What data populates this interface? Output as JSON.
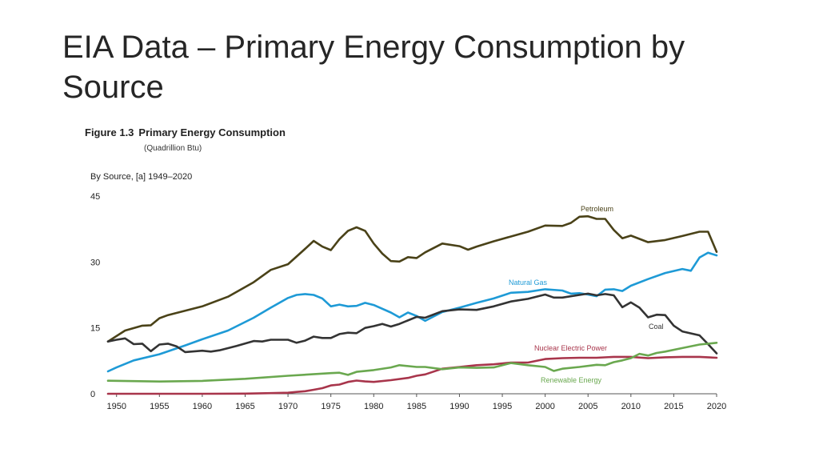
{
  "slide": {
    "title": "EIA Data – Primary Energy Consumption by Source"
  },
  "figure": {
    "label": "Figure 1.3",
    "title": "Primary Energy Consumption",
    "units": "(Quadrillion Btu)",
    "subtitle": "By Source, [a] 1949–2020"
  },
  "chart_data": {
    "type": "line",
    "title": "Primary Energy Consumption",
    "xlabel": "",
    "ylabel": "Quadrillion Btu",
    "xlim": [
      1949,
      2020
    ],
    "ylim": [
      0,
      45
    ],
    "yticks": [
      0,
      15,
      30,
      45
    ],
    "xticks": [
      1950,
      1955,
      1960,
      1965,
      1970,
      1975,
      1980,
      1985,
      1990,
      1995,
      2000,
      2005,
      2010,
      2015,
      2020
    ],
    "grid": false,
    "series": [
      {
        "name": "Petroleum",
        "color": "#4a4218",
        "x": [
          1949,
          1951,
          1953,
          1954,
          1955,
          1956,
          1960,
          1963,
          1966,
          1968,
          1970,
          1972,
          1973,
          1974,
          1975,
          1976,
          1977,
          1978,
          1979,
          1980,
          1981,
          1982,
          1983,
          1984,
          1985,
          1986,
          1988,
          1990,
          1991,
          1992,
          1994,
          1996,
          1998,
          2000,
          2002,
          2003,
          2004,
          2005,
          2006,
          2007,
          2008,
          2009,
          2010,
          2012,
          2014,
          2016,
          2018,
          2019,
          2020
        ],
        "values": [
          11.9,
          14.4,
          15.5,
          15.6,
          17.2,
          17.9,
          19.9,
          22.1,
          25.4,
          28.2,
          29.5,
          33.0,
          34.8,
          33.5,
          32.7,
          35.2,
          37.1,
          37.9,
          37.1,
          34.2,
          31.9,
          30.2,
          30.1,
          31.1,
          30.9,
          32.2,
          34.2,
          33.6,
          32.8,
          33.5,
          34.7,
          35.8,
          36.9,
          38.3,
          38.2,
          38.9,
          40.3,
          40.4,
          39.8,
          39.8,
          37.3,
          35.4,
          36.0,
          34.5,
          35.0,
          35.9,
          36.9,
          36.9,
          32.3
        ]
      },
      {
        "name": "Natural Gas",
        "color": "#1e9ad6",
        "x": [
          1949,
          1950,
          1952,
          1955,
          1958,
          1960,
          1963,
          1966,
          1968,
          1970,
          1971,
          1972,
          1973,
          1974,
          1975,
          1976,
          1977,
          1978,
          1979,
          1980,
          1982,
          1983,
          1984,
          1985,
          1986,
          1988,
          1990,
          1992,
          1994,
          1996,
          1998,
          2000,
          2002,
          2003,
          2004,
          2005,
          2006,
          2007,
          2008,
          2009,
          2010,
          2012,
          2014,
          2016,
          2017,
          2018,
          2019,
          2020
        ],
        "values": [
          5.1,
          6.0,
          7.6,
          9.0,
          11.0,
          12.4,
          14.4,
          17.3,
          19.6,
          21.8,
          22.5,
          22.7,
          22.5,
          21.7,
          19.9,
          20.3,
          19.9,
          20.0,
          20.7,
          20.2,
          18.5,
          17.4,
          18.5,
          17.7,
          16.6,
          18.6,
          19.6,
          20.7,
          21.7,
          23.0,
          23.2,
          23.8,
          23.5,
          22.8,
          22.9,
          22.6,
          22.2,
          23.7,
          23.8,
          23.4,
          24.6,
          26.1,
          27.5,
          28.4,
          28.0,
          31.0,
          32.1,
          31.5
        ]
      },
      {
        "name": "Coal",
        "color": "#333333",
        "x": [
          1949,
          1950,
          1951,
          1952,
          1953,
          1954,
          1955,
          1956,
          1957,
          1958,
          1960,
          1961,
          1962,
          1964,
          1966,
          1967,
          1968,
          1970,
          1971,
          1972,
          1973,
          1974,
          1975,
          1976,
          1977,
          1978,
          1979,
          1980,
          1981,
          1982,
          1983,
          1985,
          1986,
          1988,
          1990,
          1992,
          1994,
          1996,
          1998,
          2000,
          2001,
          2002,
          2004,
          2005,
          2006,
          2007,
          2008,
          2009,
          2010,
          2011,
          2012,
          2013,
          2014,
          2015,
          2016,
          2018,
          2019,
          2020
        ],
        "values": [
          11.9,
          12.3,
          12.6,
          11.3,
          11.4,
          9.7,
          11.2,
          11.4,
          10.8,
          9.5,
          9.8,
          9.6,
          9.9,
          10.9,
          12.0,
          11.9,
          12.3,
          12.3,
          11.6,
          12.1,
          13.0,
          12.7,
          12.7,
          13.6,
          13.9,
          13.8,
          15.0,
          15.4,
          15.9,
          15.3,
          15.9,
          17.5,
          17.3,
          18.8,
          19.2,
          19.1,
          19.9,
          21.0,
          21.6,
          22.6,
          21.9,
          21.9,
          22.5,
          22.8,
          22.4,
          22.7,
          22.4,
          19.7,
          20.8,
          19.6,
          17.4,
          18.0,
          17.9,
          15.5,
          14.2,
          13.3,
          11.3,
          9.2
        ]
      },
      {
        "name": "Nuclear Electric Power",
        "color": "#a8354b",
        "x": [
          1949,
          1957,
          1960,
          1965,
          1968,
          1970,
          1971,
          1972,
          1973,
          1974,
          1975,
          1976,
          1977,
          1978,
          1979,
          1980,
          1982,
          1984,
          1985,
          1986,
          1988,
          1990,
          1992,
          1994,
          1996,
          1998,
          2000,
          2002,
          2004,
          2006,
          2008,
          2010,
          2012,
          2014,
          2016,
          2018,
          2020
        ],
        "values": [
          0.0,
          0.0,
          0.0,
          0.04,
          0.14,
          0.24,
          0.41,
          0.58,
          0.91,
          1.27,
          1.9,
          2.1,
          2.7,
          3.0,
          2.8,
          2.7,
          3.1,
          3.6,
          4.1,
          4.4,
          5.7,
          6.1,
          6.5,
          6.7,
          7.1,
          7.1,
          7.9,
          8.1,
          8.2,
          8.2,
          8.4,
          8.4,
          8.1,
          8.3,
          8.4,
          8.4,
          8.2
        ]
      },
      {
        "name": "Renewable Energy",
        "color": "#6aa84f",
        "x": [
          1949,
          1955,
          1960,
          1965,
          1970,
          1975,
          1976,
          1977,
          1978,
          1980,
          1982,
          1983,
          1985,
          1986,
          1988,
          1990,
          1992,
          1994,
          1996,
          1998,
          2000,
          2001,
          2002,
          2004,
          2006,
          2007,
          2008,
          2009,
          2010,
          2011,
          2012,
          2013,
          2014,
          2016,
          2018,
          2020
        ],
        "values": [
          2.97,
          2.78,
          2.93,
          3.4,
          4.1,
          4.7,
          4.8,
          4.3,
          5.0,
          5.4,
          6.0,
          6.5,
          6.1,
          6.1,
          5.6,
          6.0,
          5.9,
          6.0,
          7.0,
          6.5,
          6.1,
          5.2,
          5.7,
          6.1,
          6.6,
          6.5,
          7.2,
          7.6,
          8.1,
          9.1,
          8.7,
          9.3,
          9.6,
          10.4,
          11.2,
          11.6
        ]
      }
    ],
    "annotations": [
      {
        "text": "Petroleum",
        "series": "Petroleum"
      },
      {
        "text": "Natural Gas",
        "series": "Natural Gas"
      },
      {
        "text": "Coal",
        "series": "Coal"
      },
      {
        "text": "Nuclear Electric Power",
        "series": "Nuclear Electric Power"
      },
      {
        "text": "Renewable Energy",
        "series": "Renewable Energy"
      }
    ]
  }
}
